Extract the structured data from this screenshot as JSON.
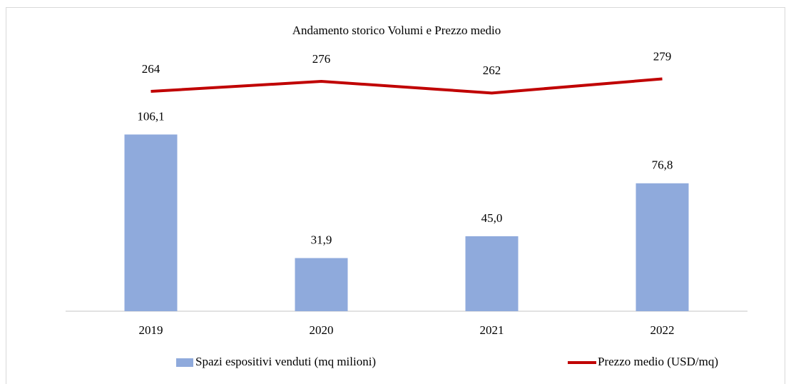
{
  "chart_data": {
    "type": "bar-line",
    "title": "Andamento storico Volumi e Prezzo medio",
    "categories": [
      "2019",
      "2020",
      "2021",
      "2022"
    ],
    "series": [
      {
        "name": "Spazi espositivi venduti (mq milioni)",
        "type": "bar",
        "color": "#8faadc",
        "values": [
          106.1,
          31.9,
          45.0,
          76.8
        ],
        "value_labels": [
          "106,1",
          "31,9",
          "45,0",
          "76,8"
        ]
      },
      {
        "name": "Prezzo medio (USD/mq)",
        "type": "line",
        "axis": "y2",
        "color": "#c00000",
        "values": [
          264,
          276,
          262,
          279
        ]
      }
    ],
    "ylim": [
      0,
      150
    ],
    "y2lim": [
      0,
      300
    ],
    "legend": "bottom"
  }
}
